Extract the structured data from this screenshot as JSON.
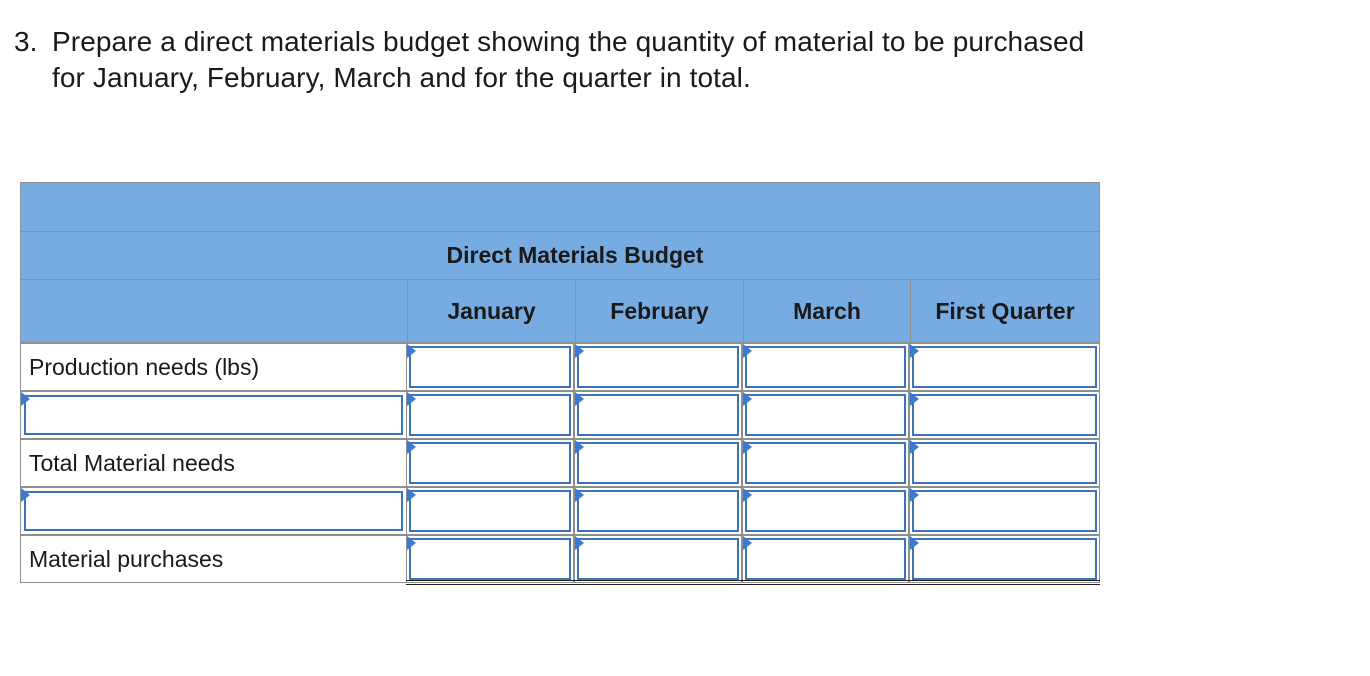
{
  "question": {
    "number": "3.",
    "line1": "Prepare a direct materials budget showing the quantity of material to be purchased",
    "line2": "for January, February, March and for the quarter in total."
  },
  "table": {
    "title": "Direct Materials Budget",
    "columns": [
      "January",
      "February",
      "March",
      "First Quarter"
    ],
    "rows": [
      {
        "label": "Production needs (lbs)",
        "editable_label": false
      },
      {
        "label": "",
        "editable_label": true
      },
      {
        "label": "Total Material needs",
        "editable_label": false
      },
      {
        "label": "",
        "editable_label": true
      },
      {
        "label": "Material purchases",
        "editable_label": false
      }
    ],
    "header_color": "#77ace3",
    "input_border_color": "#3f73b5",
    "marker_color": "#3a7ad0"
  }
}
